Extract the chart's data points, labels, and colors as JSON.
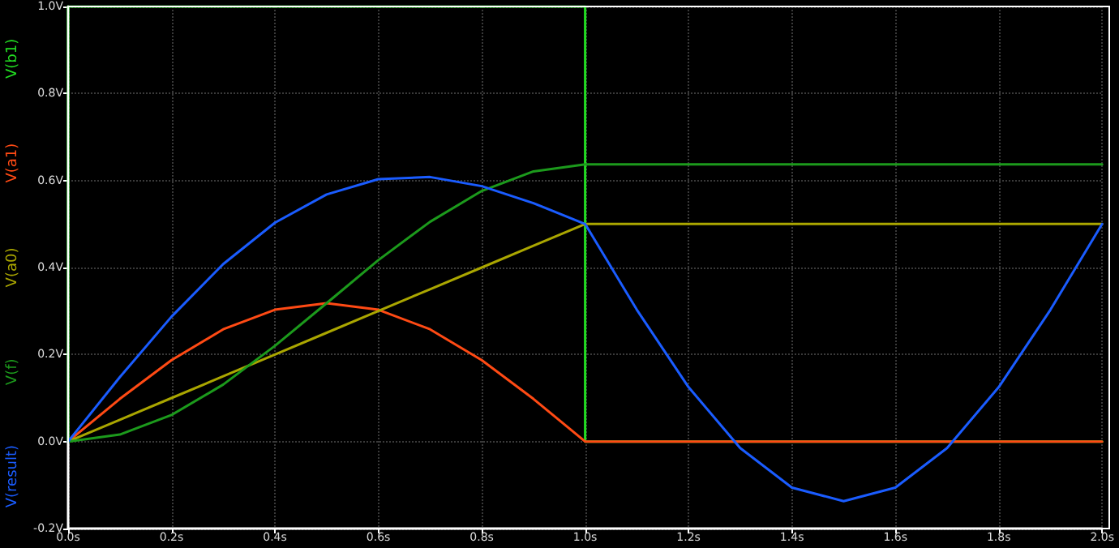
{
  "chart_data": {
    "type": "line",
    "x": [
      0,
      0.1,
      0.2,
      0.3,
      0.4,
      0.5,
      0.6,
      0.7,
      0.8,
      0.9,
      1,
      1.1,
      1.2,
      1.3,
      1.4,
      1.5,
      1.6,
      1.7,
      1.8,
      1.9,
      2
    ],
    "series": [
      {
        "name": "V(b1)",
        "color": "#22dd22",
        "x": [
          0,
          0,
          1,
          1,
          2
        ],
        "values": [
          0,
          1,
          1,
          0,
          0
        ]
      },
      {
        "name": "V(a1)",
        "color": "#ff4a14",
        "values": [
          0,
          0.098,
          0.187,
          0.258,
          0.303,
          0.318,
          0.303,
          0.258,
          0.187,
          0.098,
          0,
          0,
          0,
          0,
          0,
          0,
          0,
          0,
          0,
          0,
          0
        ]
      },
      {
        "name": "V(a0)",
        "color": "#aaa600",
        "values": [
          0,
          0.05,
          0.1,
          0.15,
          0.2,
          0.25,
          0.3,
          0.35,
          0.4,
          0.45,
          0.5,
          0.5,
          0.5,
          0.5,
          0.5,
          0.5,
          0.5,
          0.5,
          0.5,
          0.5,
          0.5
        ]
      },
      {
        "name": "V(f)",
        "color": "#1c9a1c",
        "values": [
          0,
          0.016,
          0.061,
          0.131,
          0.22,
          0.318,
          0.417,
          0.505,
          0.576,
          0.621,
          0.637,
          0.637,
          0.637,
          0.637,
          0.637,
          0.637,
          0.637,
          0.637,
          0.637,
          0.637,
          0.637
        ]
      },
      {
        "name": "V(result)",
        "color": "#1a5cff",
        "values": [
          0,
          0.148,
          0.287,
          0.408,
          0.503,
          0.568,
          0.603,
          0.608,
          0.587,
          0.548,
          0.5,
          0.303,
          0.125,
          -0.015,
          -0.106,
          -0.137,
          -0.106,
          -0.015,
          0.125,
          0.303,
          0.5
        ]
      }
    ],
    "xlim": [
      0,
      2
    ],
    "xticks": [
      {
        "value": 0,
        "label": "0.0s"
      },
      {
        "value": 0.2,
        "label": "0.2s"
      },
      {
        "value": 0.4,
        "label": "0.4s"
      },
      {
        "value": 0.6,
        "label": "0.6s"
      },
      {
        "value": 0.8,
        "label": "0.8s"
      },
      {
        "value": 1,
        "label": "1.0s"
      },
      {
        "value": 1.2,
        "label": "1.2s"
      },
      {
        "value": 1.4,
        "label": "1.4s"
      },
      {
        "value": 1.6,
        "label": "1.6s"
      },
      {
        "value": 1.8,
        "label": "1.8s"
      },
      {
        "value": 2,
        "label": "2.0s"
      }
    ],
    "ylim": [
      -0.2,
      1
    ],
    "yticks": [
      {
        "value": -0.2,
        "label": "-0.2V"
      },
      {
        "value": 0,
        "label": "0.0V"
      },
      {
        "value": 0.2,
        "label": "0.2V"
      },
      {
        "value": 0.4,
        "label": "0.4V"
      },
      {
        "value": 0.6,
        "label": "0.6V"
      },
      {
        "value": 0.8,
        "label": "0.8V"
      },
      {
        "value": 1,
        "label": "1.0V"
      }
    ],
    "grid": true,
    "legend": "left",
    "line_style": "solid",
    "marker": "none"
  }
}
